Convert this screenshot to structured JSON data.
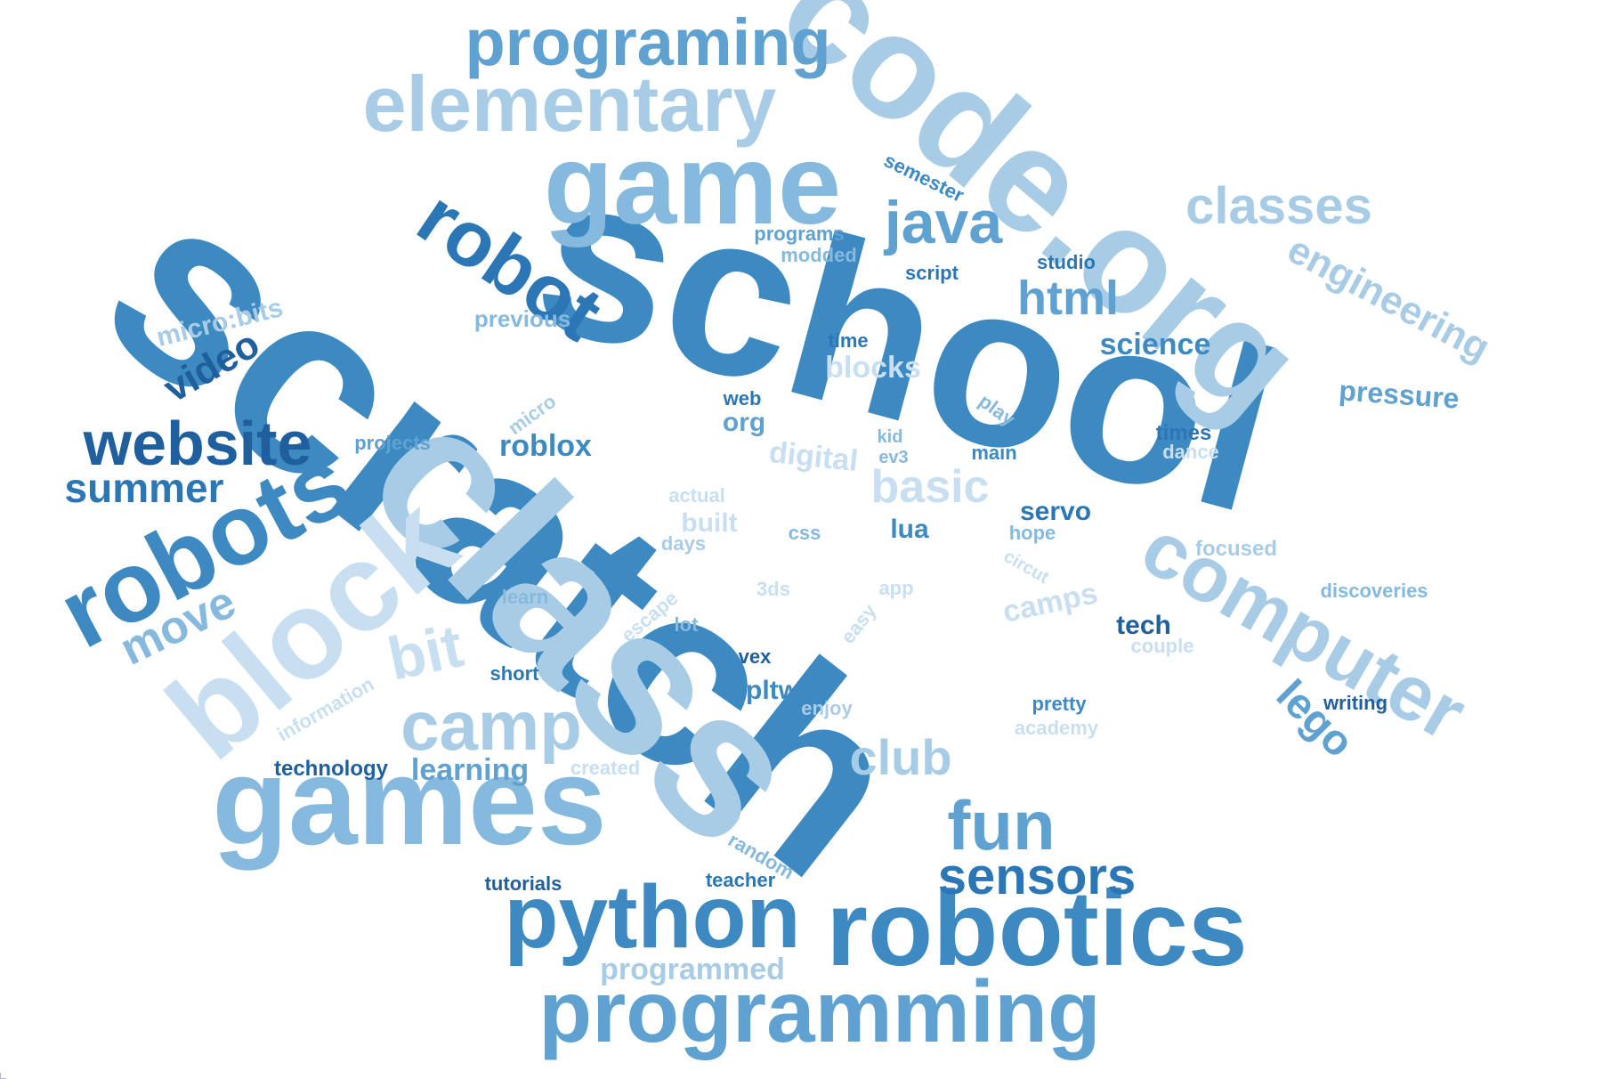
{
  "palette": {
    "c1": "#1f5f9e",
    "c2": "#2b77b6",
    "c3": "#3d89c2",
    "c4": "#5fa1d0",
    "c5": "#86b9de",
    "c6": "#a9cce6",
    "c7": "#c7dff0"
  },
  "words": [
    {
      "text": "scratch",
      "color": "c3"
    },
    {
      "text": "school",
      "color": "c3"
    },
    {
      "text": "class",
      "color": "c6"
    },
    {
      "text": "code.org",
      "color": "c6"
    },
    {
      "text": "games",
      "color": "c5"
    },
    {
      "text": "game",
      "color": "c5"
    },
    {
      "text": "robotics",
      "color": "c3"
    },
    {
      "text": "block",
      "color": "c7"
    },
    {
      "text": "robots",
      "color": "c3"
    },
    {
      "text": "programming",
      "color": "c4"
    },
    {
      "text": "python",
      "color": "c3"
    },
    {
      "text": "computer",
      "color": "c6"
    },
    {
      "text": "elementary",
      "color": "c6"
    },
    {
      "text": "programing",
      "color": "c4"
    },
    {
      "text": "robot",
      "color": "c2"
    },
    {
      "text": "website",
      "color": "c1"
    },
    {
      "text": "camp",
      "color": "c6"
    },
    {
      "text": "classes",
      "color": "c6"
    },
    {
      "text": "java",
      "color": "c4"
    },
    {
      "text": "fun",
      "color": "c4"
    },
    {
      "text": "sensors",
      "color": "c2"
    },
    {
      "text": "bit",
      "color": "c7"
    },
    {
      "text": "engineering",
      "color": "c6"
    },
    {
      "text": "summer",
      "color": "c2"
    },
    {
      "text": "html",
      "color": "c4"
    },
    {
      "text": "basic",
      "color": "c7"
    },
    {
      "text": "club",
      "color": "c6"
    },
    {
      "text": "move",
      "color": "c5"
    },
    {
      "text": "lego",
      "color": "c4"
    },
    {
      "text": "video",
      "color": "c1"
    },
    {
      "text": "micro:bits",
      "color": "c6"
    },
    {
      "text": "pressure",
      "color": "c4"
    },
    {
      "text": "science",
      "color": "c3"
    },
    {
      "text": "learning",
      "color": "c4"
    },
    {
      "text": "blocks",
      "color": "c7"
    },
    {
      "text": "roblox",
      "color": "c3"
    },
    {
      "text": "programmed",
      "color": "c6"
    },
    {
      "text": "digital",
      "color": "c7"
    },
    {
      "text": "camps",
      "color": "c7"
    },
    {
      "text": "servo",
      "color": "c2"
    },
    {
      "text": "tech",
      "color": "c1"
    },
    {
      "text": "lua",
      "color": "c3"
    },
    {
      "text": "pltw",
      "color": "c3"
    },
    {
      "text": "built",
      "color": "c7"
    },
    {
      "text": "org",
      "color": "c4"
    },
    {
      "text": "previous",
      "color": "c5"
    },
    {
      "text": "projects",
      "color": "c4"
    },
    {
      "text": "technology",
      "color": "c1"
    },
    {
      "text": "semester",
      "color": "c3"
    },
    {
      "text": "programs",
      "color": "c4"
    },
    {
      "text": "modded",
      "color": "c5"
    },
    {
      "text": "script",
      "color": "c2"
    },
    {
      "text": "studio",
      "color": "c2"
    },
    {
      "text": "time",
      "color": "c2"
    },
    {
      "text": "micro",
      "color": "c6"
    },
    {
      "text": "web",
      "color": "c2"
    },
    {
      "text": "play",
      "color": "c5"
    },
    {
      "text": "kid",
      "color": "c5"
    },
    {
      "text": "ev3",
      "color": "c5"
    },
    {
      "text": "main",
      "color": "c3"
    },
    {
      "text": "times",
      "color": "c2"
    },
    {
      "text": "dance",
      "color": "c7"
    },
    {
      "text": "actual",
      "color": "c7"
    },
    {
      "text": "days",
      "color": "c6"
    },
    {
      "text": "css",
      "color": "c5"
    },
    {
      "text": "hope",
      "color": "c5"
    },
    {
      "text": "focused",
      "color": "c6"
    },
    {
      "text": "circut",
      "color": "c7"
    },
    {
      "text": "learn",
      "color": "c5"
    },
    {
      "text": "3ds",
      "color": "c7"
    },
    {
      "text": "app",
      "color": "c7"
    },
    {
      "text": "escape",
      "color": "c7"
    },
    {
      "text": "lot",
      "color": "c5"
    },
    {
      "text": "easy",
      "color": "c7"
    },
    {
      "text": "discoveries",
      "color": "c5"
    },
    {
      "text": "couple",
      "color": "c7"
    },
    {
      "text": "vex",
      "color": "c1"
    },
    {
      "text": "short",
      "color": "c2"
    },
    {
      "text": "enjoy",
      "color": "c6"
    },
    {
      "text": "pretty",
      "color": "c3"
    },
    {
      "text": "writing",
      "color": "c1"
    },
    {
      "text": "academy",
      "color": "c7"
    },
    {
      "text": "information",
      "color": "c7"
    },
    {
      "text": "created",
      "color": "c7"
    },
    {
      "text": "random",
      "color": "c5"
    },
    {
      "text": "teacher",
      "color": "c2"
    },
    {
      "text": "tutorials",
      "color": "c1"
    }
  ]
}
